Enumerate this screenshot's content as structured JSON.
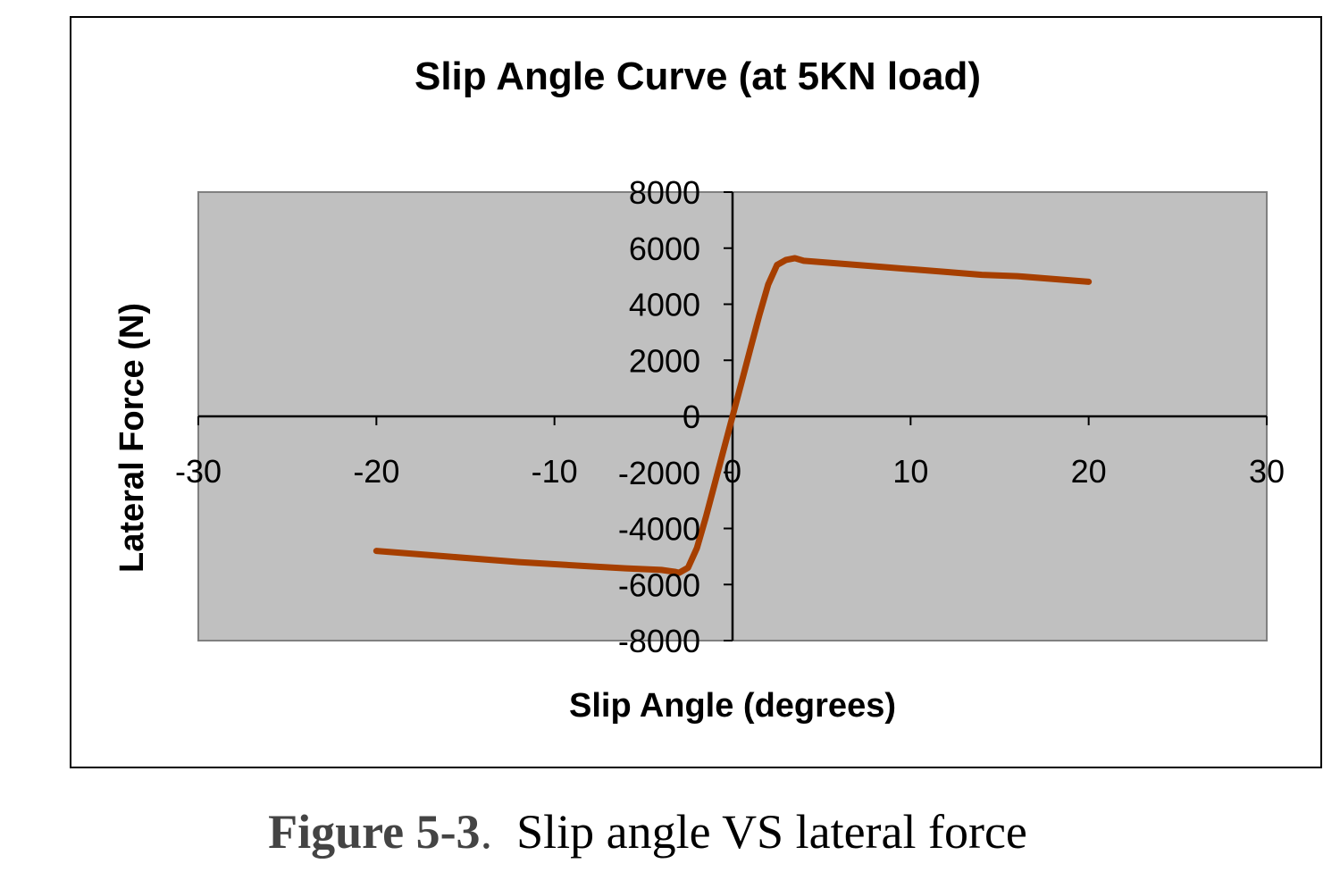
{
  "chart_data": {
    "type": "line",
    "title": "Slip Angle Curve (at 5KN load)",
    "xlabel": "Slip Angle (degrees)",
    "ylabel": "Lateral Force (N)",
    "xlim": [
      -30,
      30
    ],
    "ylim": [
      -8000,
      8000
    ],
    "xticks": [
      -30,
      -20,
      -10,
      0,
      10,
      20,
      30
    ],
    "yticks": [
      -8000,
      -6000,
      -4000,
      -2000,
      0,
      2000,
      4000,
      6000,
      8000
    ],
    "xtick_labels": [
      "-30",
      "-20",
      "-10",
      "0",
      "10",
      "20",
      "30"
    ],
    "ytick_labels": [
      "-8000",
      "-6000",
      "-4000",
      "-2000",
      "0",
      "2000",
      "4000",
      "6000",
      "8000"
    ],
    "grid": false,
    "legend": "none",
    "plot_background": "#c0c0c0",
    "line_color": "#a63f00",
    "series": [
      {
        "x": [
          -20,
          -16,
          -12,
          -8,
          -6,
          -4,
          -3.2,
          -3,
          -2.5,
          -2,
          -1.5,
          -1,
          -0.5,
          0,
          0.5,
          1,
          1.5,
          2,
          2.5,
          3,
          3.5,
          4,
          6,
          8,
          10,
          12,
          14,
          16,
          18,
          20
        ],
        "y": [
          -4800,
          -5000,
          -5200,
          -5350,
          -5420,
          -5480,
          -5550,
          -5580,
          -5400,
          -4700,
          -3600,
          -2400,
          -1200,
          0,
          1200,
          2400,
          3600,
          4700,
          5400,
          5580,
          5640,
          5550,
          5450,
          5350,
          5250,
          5150,
          5050,
          5000,
          4900,
          4800
        ]
      }
    ]
  },
  "caption": {
    "label": "Figure 5-3",
    "separator": ".",
    "text": "Slip angle VS lateral force"
  }
}
